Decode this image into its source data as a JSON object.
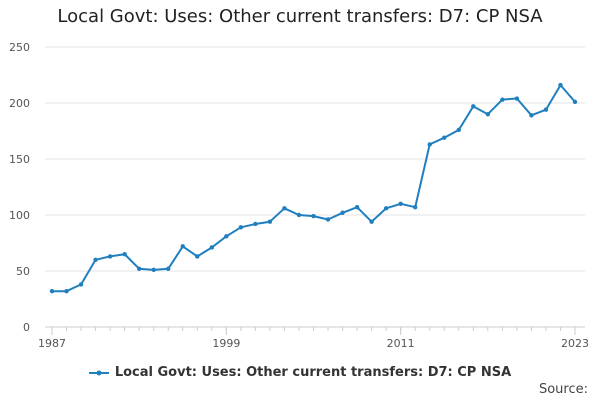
{
  "chart_data": {
    "type": "line",
    "title": "Local Govt: Uses: Other current transfers: D7: CP NSA",
    "xlabel": "",
    "ylabel": "",
    "xlim": [
      1987,
      2023
    ],
    "ylim": [
      0,
      250
    ],
    "x_ticks": [
      "1987",
      "1999",
      "2011",
      "2023"
    ],
    "y_ticks": [
      "0",
      "50",
      "100",
      "150",
      "200",
      "250"
    ],
    "grid": true,
    "legend_position": "bottom",
    "series": [
      {
        "name": "Local Govt: Uses: Other current transfers: D7: CP NSA",
        "color": "#1f7fbf",
        "x": [
          1987,
          1988,
          1989,
          1990,
          1991,
          1992,
          1993,
          1994,
          1995,
          1996,
          1997,
          1998,
          1999,
          2000,
          2001,
          2002,
          2003,
          2004,
          2005,
          2006,
          2007,
          2008,
          2009,
          2010,
          2011,
          2012,
          2013,
          2014,
          2015,
          2016,
          2017,
          2018,
          2019,
          2020,
          2021,
          2022,
          2023
        ],
        "values": [
          32,
          32,
          38,
          60,
          63,
          65,
          52,
          51,
          52,
          72,
          63,
          71,
          81,
          89,
          92,
          94,
          106,
          100,
          99,
          96,
          102,
          107,
          94,
          106,
          110,
          107,
          163,
          169,
          176,
          197,
          190,
          203,
          204,
          189,
          194,
          216,
          201
        ]
      }
    ]
  },
  "source_label": "Source:"
}
